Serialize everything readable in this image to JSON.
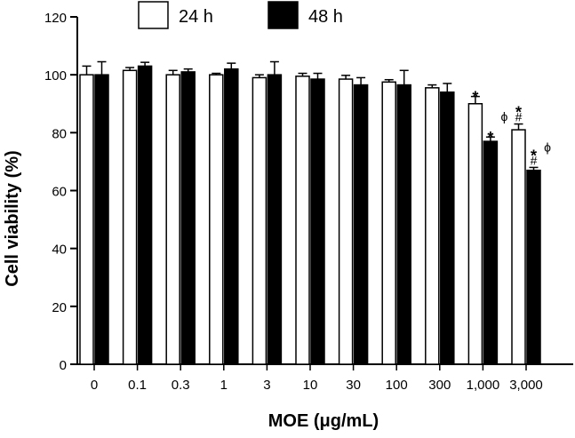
{
  "chart_data": {
    "type": "bar",
    "title": "",
    "xlabel": "MOE (μg/mL)",
    "ylabel": "Cell viability (%)",
    "ylim": [
      0,
      120
    ],
    "yticks": [
      0,
      20,
      40,
      60,
      80,
      100,
      120
    ],
    "categories": [
      "0",
      "0.1",
      "0.3",
      "1",
      "3",
      "10",
      "30",
      "100",
      "300",
      "1,000",
      "3,000"
    ],
    "legend_placement": "top",
    "grid": false,
    "series": [
      {
        "name": "24 h",
        "fill": "#ffffff",
        "values": [
          100,
          101.5,
          100,
          100,
          99,
          99.5,
          98.5,
          97.5,
          95.5,
          90,
          81
        ],
        "errors": [
          3,
          1,
          1.5,
          0.5,
          1,
          1,
          1.3,
          0.8,
          1,
          2.5,
          2
        ]
      },
      {
        "name": "48 h",
        "fill": "#000000",
        "values": [
          100,
          103,
          101,
          102,
          100,
          98.5,
          96.5,
          96.5,
          94,
          77,
          67
        ],
        "errors": [
          4.5,
          1.3,
          1,
          2,
          4.5,
          2,
          2.5,
          5,
          3,
          1.5,
          1
        ]
      }
    ],
    "annotations": [
      {
        "category": "1,000",
        "series": "24 h",
        "text": "*",
        "style": "bold"
      },
      {
        "category": "1,000",
        "series": "48 h",
        "text": "ϕ",
        "style": "small",
        "position": "upper-right"
      },
      {
        "category": "1,000",
        "series": "48 h",
        "text": "*",
        "style": "bold"
      },
      {
        "category": "3,000",
        "series": "24 h",
        "text": "#",
        "style": "small"
      },
      {
        "category": "3,000",
        "series": "24 h",
        "text": "*",
        "style": "bold"
      },
      {
        "category": "3,000",
        "series": "48 h",
        "text": "ϕ",
        "style": "small",
        "position": "upper-right"
      },
      {
        "category": "3,000",
        "series": "48 h",
        "text": "#",
        "style": "small"
      },
      {
        "category": "3,000",
        "series": "48 h",
        "text": "*",
        "style": "bold"
      }
    ]
  }
}
